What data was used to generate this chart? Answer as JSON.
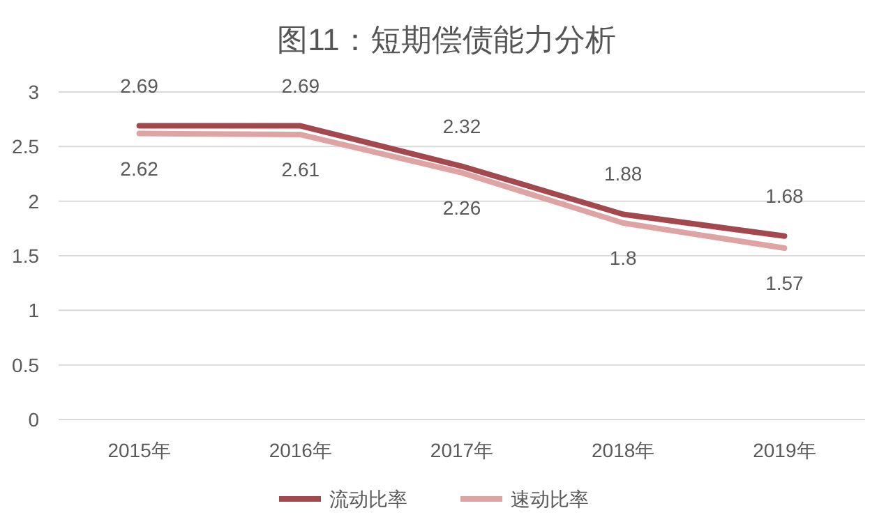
{
  "chart_data": {
    "type": "line",
    "title": "图11：短期偿债能力分析",
    "categories": [
      "2015年",
      "2016年",
      "2017年",
      "2018年",
      "2019年"
    ],
    "series": [
      {
        "name": "流动比率",
        "color": "#a3484c",
        "values": [
          2.69,
          2.69,
          2.32,
          1.88,
          1.68
        ]
      },
      {
        "name": "速动比率",
        "color": "#dea3a3",
        "values": [
          2.62,
          2.61,
          2.26,
          1.8,
          1.57
        ]
      }
    ],
    "ylim": [
      0,
      3
    ],
    "yticks": [
      0,
      0.5,
      1,
      1.5,
      2,
      2.5,
      3
    ],
    "grid": "y",
    "legend": "bottom",
    "data_labels": true,
    "marker": "none",
    "line_style": "solid"
  }
}
